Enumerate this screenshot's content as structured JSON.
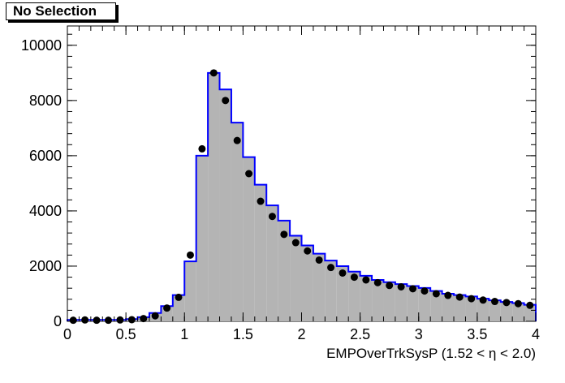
{
  "selection_label": "No Selection",
  "chart_data": {
    "type": "histogram",
    "title": "",
    "xlabel": "EMPOverTrkSysP (1.52 <   η < 2.0)",
    "ylabel": "",
    "xlim": [
      0,
      4
    ],
    "ylim": [
      0,
      10700
    ],
    "x_ticks": [
      0,
      0.5,
      1,
      1.5,
      2,
      2.5,
      3,
      3.5,
      4
    ],
    "x_tick_labels": [
      "0",
      "0.5",
      "1",
      "1.5",
      "2",
      "2.5",
      "3",
      "3.5",
      "4"
    ],
    "y_ticks": [
      0,
      2000,
      4000,
      6000,
      8000,
      10000
    ],
    "y_tick_labels": [
      "0",
      "2000",
      "4000",
      "6000",
      "8000",
      "10000"
    ],
    "bin_width": 0.1,
    "x": [
      0.05,
      0.15,
      0.25,
      0.35,
      0.45,
      0.55,
      0.65,
      0.75,
      0.85,
      0.95,
      1.05,
      1.15,
      1.25,
      1.35,
      1.45,
      1.55,
      1.65,
      1.75,
      1.85,
      1.95,
      2.05,
      2.15,
      2.25,
      2.35,
      2.45,
      2.55,
      2.65,
      2.75,
      2.85,
      2.95,
      3.05,
      3.15,
      3.25,
      3.35,
      3.45,
      3.55,
      3.65,
      3.75,
      3.85,
      3.95
    ],
    "series": [
      {
        "style": "filled-step",
        "fill": "#b4b4b4",
        "line": "#0000ff",
        "values": [
          50,
          50,
          50,
          50,
          50,
          80,
          150,
          300,
          550,
          950,
          2170,
          6000,
          9000,
          8400,
          7200,
          5950,
          4950,
          4200,
          3650,
          3100,
          2750,
          2450,
          2200,
          2000,
          1800,
          1650,
          1500,
          1420,
          1350,
          1280,
          1210,
          1100,
          1000,
          950,
          900,
          820,
          760,
          700,
          660,
          600
        ]
      },
      {
        "style": "markers",
        "color": "#000000",
        "values": [
          40,
          50,
          40,
          40,
          50,
          60,
          100,
          200,
          480,
          870,
          2400,
          6250,
          9000,
          8000,
          6550,
          5350,
          4350,
          3800,
          3150,
          2850,
          2550,
          2220,
          1950,
          1750,
          1600,
          1500,
          1400,
          1300,
          1250,
          1180,
          1100,
          1000,
          940,
          880,
          820,
          770,
          720,
          680,
          640,
          580
        ]
      }
    ]
  }
}
